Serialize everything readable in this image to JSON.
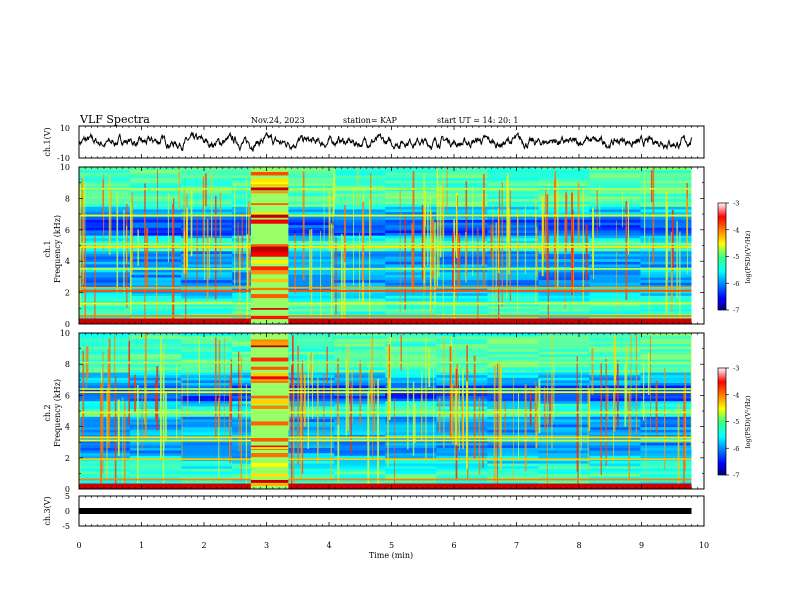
{
  "header": {
    "title": "VLF Spectra",
    "date": "Nov.24, 2023",
    "station": "station= KAP",
    "start": "start UT =  14: 20: 1"
  },
  "chart_data": [
    {
      "type": "line",
      "id": "ch1",
      "ylabel": "ch.1(V)",
      "ylim": [
        -10,
        10
      ],
      "yticks": [
        "10",
        "-10"
      ],
      "xlim": [
        0,
        10
      ],
      "note": "noisy waveform between about -4 and +4 V across the record"
    },
    {
      "type": "heatmap",
      "id": "spec1",
      "ylabel_lines": [
        "ch.1",
        "Frequency (kHz)"
      ],
      "ylim": [
        0,
        10
      ],
      "yticks": [
        "0",
        "2",
        "4",
        "6",
        "8",
        "10"
      ],
      "xlim": [
        0,
        10
      ],
      "data_end_min": 9.8,
      "burst_min": [
        2.75,
        3.35
      ],
      "colorbar": {
        "label": "log(PSD)(V²/Hz)",
        "ticks": [
          "-3",
          "-4",
          "-5",
          "-6",
          "-7"
        ],
        "range": [
          -7,
          -3
        ]
      },
      "bands": [
        {
          "f": 0.2,
          "level": -3.3
        },
        {
          "f": 0.5,
          "level": -4.0
        },
        {
          "f": 1.3,
          "level": -4.6
        },
        {
          "f": 2.1,
          "level": -3.8
        },
        {
          "f": 2.3,
          "level": -4.2
        },
        {
          "f": 3.5,
          "level": -4.8
        },
        {
          "f": 4.9,
          "level": -4.4
        },
        {
          "f": 5.1,
          "level": -4.9
        },
        {
          "f": 6.9,
          "level": -4.6
        },
        {
          "f": 8.6,
          "level": -4.8
        }
      ]
    },
    {
      "type": "heatmap",
      "id": "spec2",
      "ylabel_lines": [
        "ch.2",
        "Frequency (kHz)"
      ],
      "ylim": [
        0,
        10
      ],
      "yticks": [
        "0",
        "2",
        "4",
        "6",
        "8",
        "10"
      ],
      "xlim": [
        0,
        10
      ],
      "data_end_min": 9.8,
      "burst_min": [
        2.75,
        3.35
      ],
      "colorbar": {
        "label": "log(PSD)(V²/Hz)",
        "ticks": [
          "-3",
          "-4",
          "-5",
          "-6",
          "-7"
        ],
        "range": [
          -7,
          -3
        ]
      },
      "bands": [
        {
          "f": 0.2,
          "level": -3.3
        },
        {
          "f": 0.6,
          "level": -4.0
        },
        {
          "f": 1.9,
          "level": -4.3
        },
        {
          "f": 3.1,
          "level": -4.6
        },
        {
          "f": 3.3,
          "level": -4.4
        },
        {
          "f": 4.9,
          "level": -4.7
        },
        {
          "f": 6.2,
          "level": -4.5
        },
        {
          "f": 6.4,
          "level": -4.9
        },
        {
          "f": 8.1,
          "level": -4.9
        }
      ]
    },
    {
      "type": "line",
      "id": "ch3",
      "ylabel": "ch.3(V)",
      "ylim": [
        -5,
        5
      ],
      "yticks": [
        "5",
        "0",
        "-5"
      ],
      "xlim": [
        0,
        10
      ],
      "note": "dense signal near -1 V shown as a thick black band from 0 to 9.8 min"
    }
  ],
  "xaxis": {
    "label": "Time (min)",
    "ticks": [
      "0",
      "1",
      "2",
      "3",
      "4",
      "5",
      "6",
      "7",
      "8",
      "9",
      "10"
    ]
  }
}
